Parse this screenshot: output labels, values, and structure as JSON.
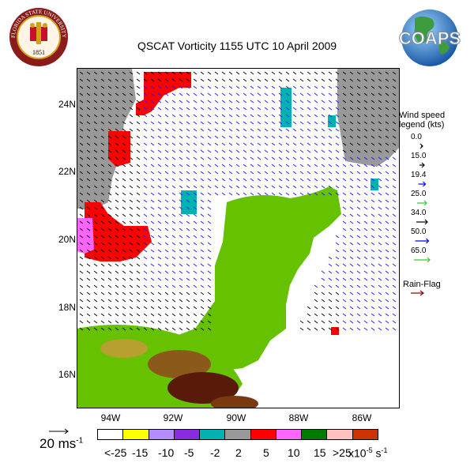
{
  "title": "QSCAT Vorticity 1155 UTC 10 April 2009",
  "logos": {
    "fsu_text": "FLORIDA STATE UNIVERSITY",
    "fsu_year": "1851",
    "coaps": "COAPS"
  },
  "axes": {
    "lat_labels": [
      "24N",
      "22N",
      "20N",
      "18N",
      "16N"
    ],
    "lon_labels": [
      "94W",
      "92W",
      "90W",
      "88W",
      "86W"
    ]
  },
  "wind_legend": {
    "title_line1": "Wind speed",
    "title_line2": "legend (kts)",
    "items": [
      {
        "label": "0.0",
        "color": "#000000"
      },
      {
        "label": "15.0",
        "color": "#000000"
      },
      {
        "label": "19.4",
        "color": "#0000ff"
      },
      {
        "label": "25.0",
        "color": "#33cc33"
      },
      {
        "label": "34.0",
        "color": "#000000"
      },
      {
        "label": "50.0",
        "color": "#0000ff"
      },
      {
        "label": "65.0",
        "color": "#33cc33"
      }
    ],
    "rain_flag": "Rain-Flag",
    "rain_flag_color": "#8b0000"
  },
  "scale_arrow": {
    "value": "20 ms",
    "exp": "-1"
  },
  "colorbar": {
    "colors": [
      "#ffffff",
      "#ffff00",
      "#b58cff",
      "#8a2be2",
      "#00b2b2",
      "#999999",
      "#ff0000",
      "#ff66ff",
      "#007a00",
      "#ffc0c0",
      "#cc3300"
    ],
    "labels": [
      "<-25",
      "-15",
      "-10",
      "-5",
      "-2",
      "2",
      "5",
      "10",
      "15",
      ">25"
    ],
    "units": "x10",
    "units_exp": "-5",
    "units_tail": "s",
    "units_tail_exp": "-1"
  }
}
